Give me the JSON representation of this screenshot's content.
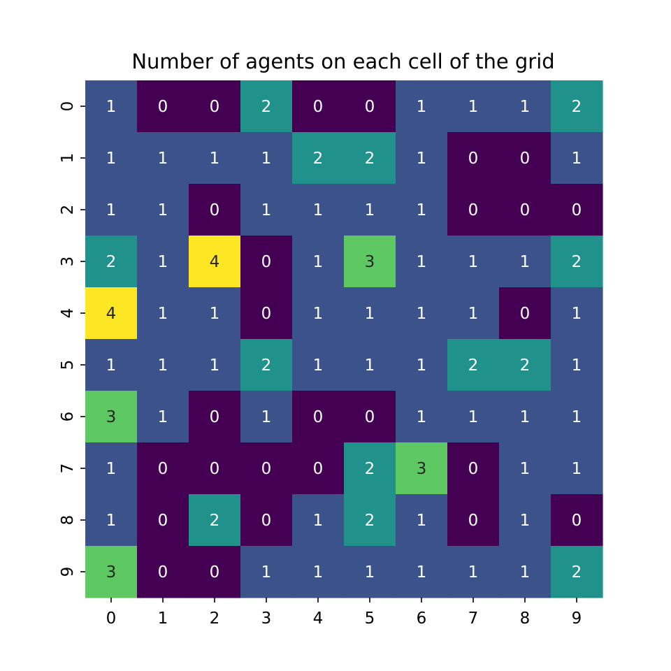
{
  "chart_data": {
    "type": "heatmap",
    "title": "Number of agents on each cell of the grid",
    "xlabel": "",
    "ylabel": "",
    "x_tick_labels": [
      "0",
      "1",
      "2",
      "3",
      "4",
      "5",
      "6",
      "7",
      "8",
      "9"
    ],
    "y_tick_labels": [
      "0",
      "1",
      "2",
      "3",
      "4",
      "5",
      "6",
      "7",
      "8",
      "9"
    ],
    "values": [
      [
        1,
        0,
        0,
        2,
        0,
        0,
        1,
        1,
        1,
        2
      ],
      [
        1,
        1,
        1,
        1,
        2,
        2,
        1,
        0,
        0,
        1
      ],
      [
        1,
        1,
        0,
        1,
        1,
        1,
        1,
        0,
        0,
        0
      ],
      [
        2,
        1,
        4,
        0,
        1,
        3,
        1,
        1,
        1,
        2
      ],
      [
        4,
        1,
        1,
        0,
        1,
        1,
        1,
        1,
        0,
        1
      ],
      [
        1,
        1,
        1,
        2,
        1,
        1,
        1,
        2,
        2,
        1
      ],
      [
        3,
        1,
        0,
        1,
        0,
        0,
        1,
        1,
        1,
        1
      ],
      [
        1,
        0,
        0,
        0,
        0,
        2,
        3,
        0,
        1,
        1
      ],
      [
        1,
        0,
        2,
        0,
        1,
        2,
        1,
        0,
        1,
        0
      ],
      [
        3,
        0,
        0,
        1,
        1,
        1,
        1,
        1,
        1,
        2
      ]
    ],
    "annotated": true,
    "colormap": "viridis",
    "color_scale": {
      "0": "#440154",
      "1": "#3b528b",
      "2": "#21918c",
      "3": "#5ec962",
      "4": "#fde725"
    },
    "annotation_colors": {
      "0": "#ffffff",
      "1": "#ffffff",
      "2": "#ffffff",
      "3": "#262626",
      "4": "#262626"
    },
    "colorbar": false,
    "grid": false
  }
}
